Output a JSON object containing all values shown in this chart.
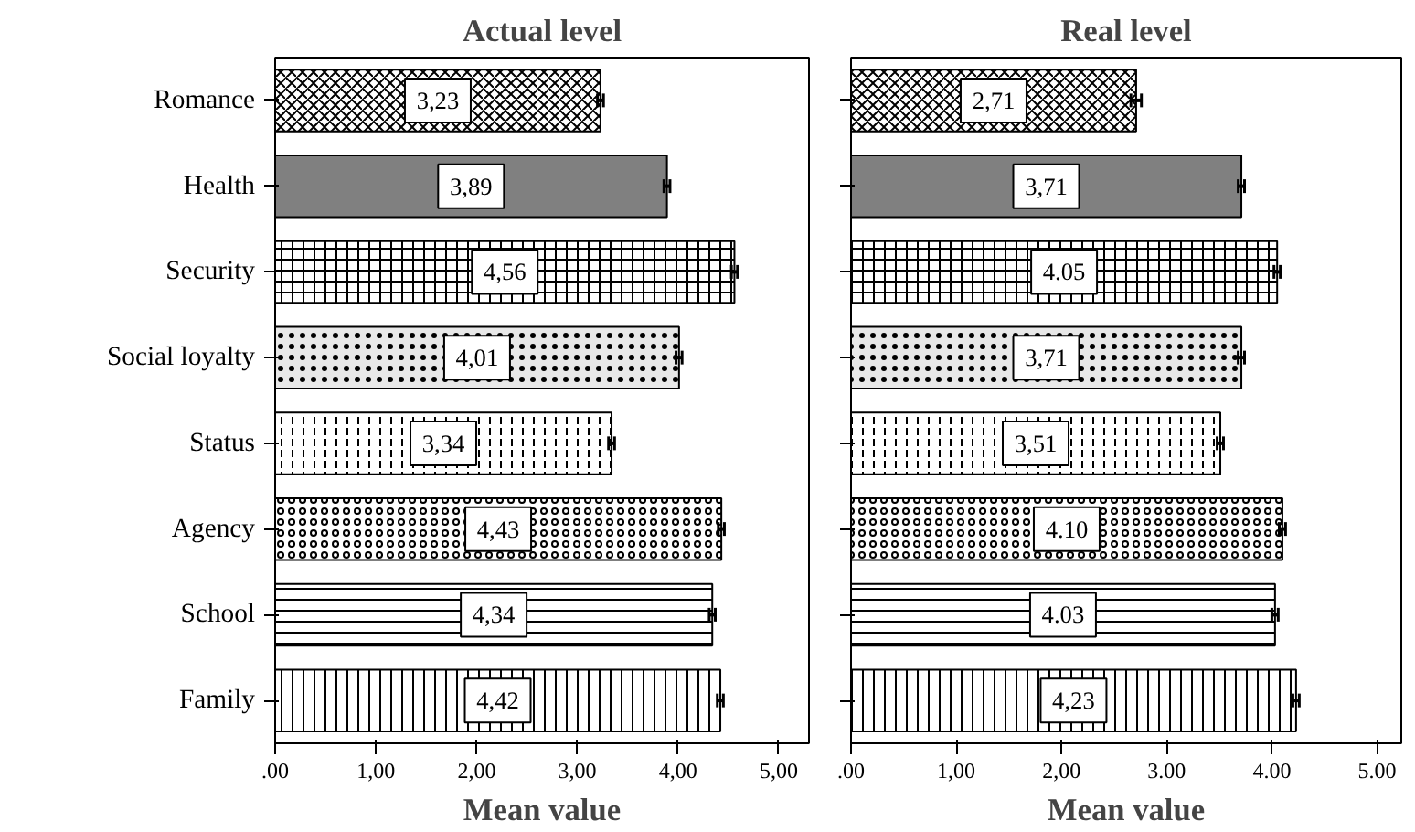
{
  "chart_data": [
    {
      "type": "bar",
      "orientation": "horizontal",
      "title": "Actual level",
      "xlabel": "Mean value",
      "categories": [
        "Romance",
        "Health",
        "Security",
        "Social loyalty",
        "Status",
        "Agency",
        "School",
        "Family"
      ],
      "values": [
        3.23,
        3.89,
        4.56,
        4.01,
        3.34,
        4.43,
        4.34,
        4.42
      ],
      "value_labels": [
        "3,23",
        "3,89",
        "4,56",
        "4,01",
        "3,34",
        "4,43",
        "4,34",
        "4,42"
      ],
      "errors": [
        0.03,
        0.03,
        0.03,
        0.03,
        0.03,
        0.03,
        0.03,
        0.03
      ],
      "colors": [
        "#ffffff",
        "#808080",
        "#ffffff",
        "#e8e8e8",
        "#ffffff",
        "#ffffff",
        "#ffffff",
        "#ffffff"
      ],
      "xlim": [
        0,
        5.3
      ],
      "xticks": [
        {
          "value": 0,
          "label": ".00"
        },
        {
          "value": 1,
          "label": "1,00"
        },
        {
          "value": 2,
          "label": "2,00"
        },
        {
          "value": 3,
          "label": "3,00"
        },
        {
          "value": 4,
          "label": "4,00"
        },
        {
          "value": 5,
          "label": "5,00"
        }
      ],
      "grid": false
    },
    {
      "type": "bar",
      "orientation": "horizontal",
      "title": "Real level",
      "xlabel": "Mean value",
      "categories": [
        "Romance",
        "Health",
        "Security",
        "Social loyalty",
        "Status",
        "Agency",
        "School",
        "Family"
      ],
      "values": [
        2.71,
        3.71,
        4.05,
        3.71,
        3.51,
        4.1,
        4.03,
        4.23
      ],
      "value_labels": [
        "2,71",
        "3,71",
        "4.05",
        "3,71",
        "3,51",
        "4.10",
        "4.03",
        "4,23"
      ],
      "errors": [
        0.05,
        0.03,
        0.03,
        0.03,
        0.03,
        0.03,
        0.03,
        0.03
      ],
      "colors": [
        "#ffffff",
        "#808080",
        "#ffffff",
        "#e8e8e8",
        "#ffffff",
        "#ffffff",
        "#ffffff",
        "#ffffff"
      ],
      "xlim": [
        0,
        5.23
      ],
      "xticks": [
        {
          "value": 0,
          "label": ".00"
        },
        {
          "value": 1,
          "label": "1,00"
        },
        {
          "value": 2,
          "label": "2,00"
        },
        {
          "value": 3,
          "label": "3.00"
        },
        {
          "value": 4,
          "label": "4.00"
        },
        {
          "value": 5,
          "label": "5.00"
        }
      ],
      "tick_labels": "x",
      "grid": false
    }
  ]
}
